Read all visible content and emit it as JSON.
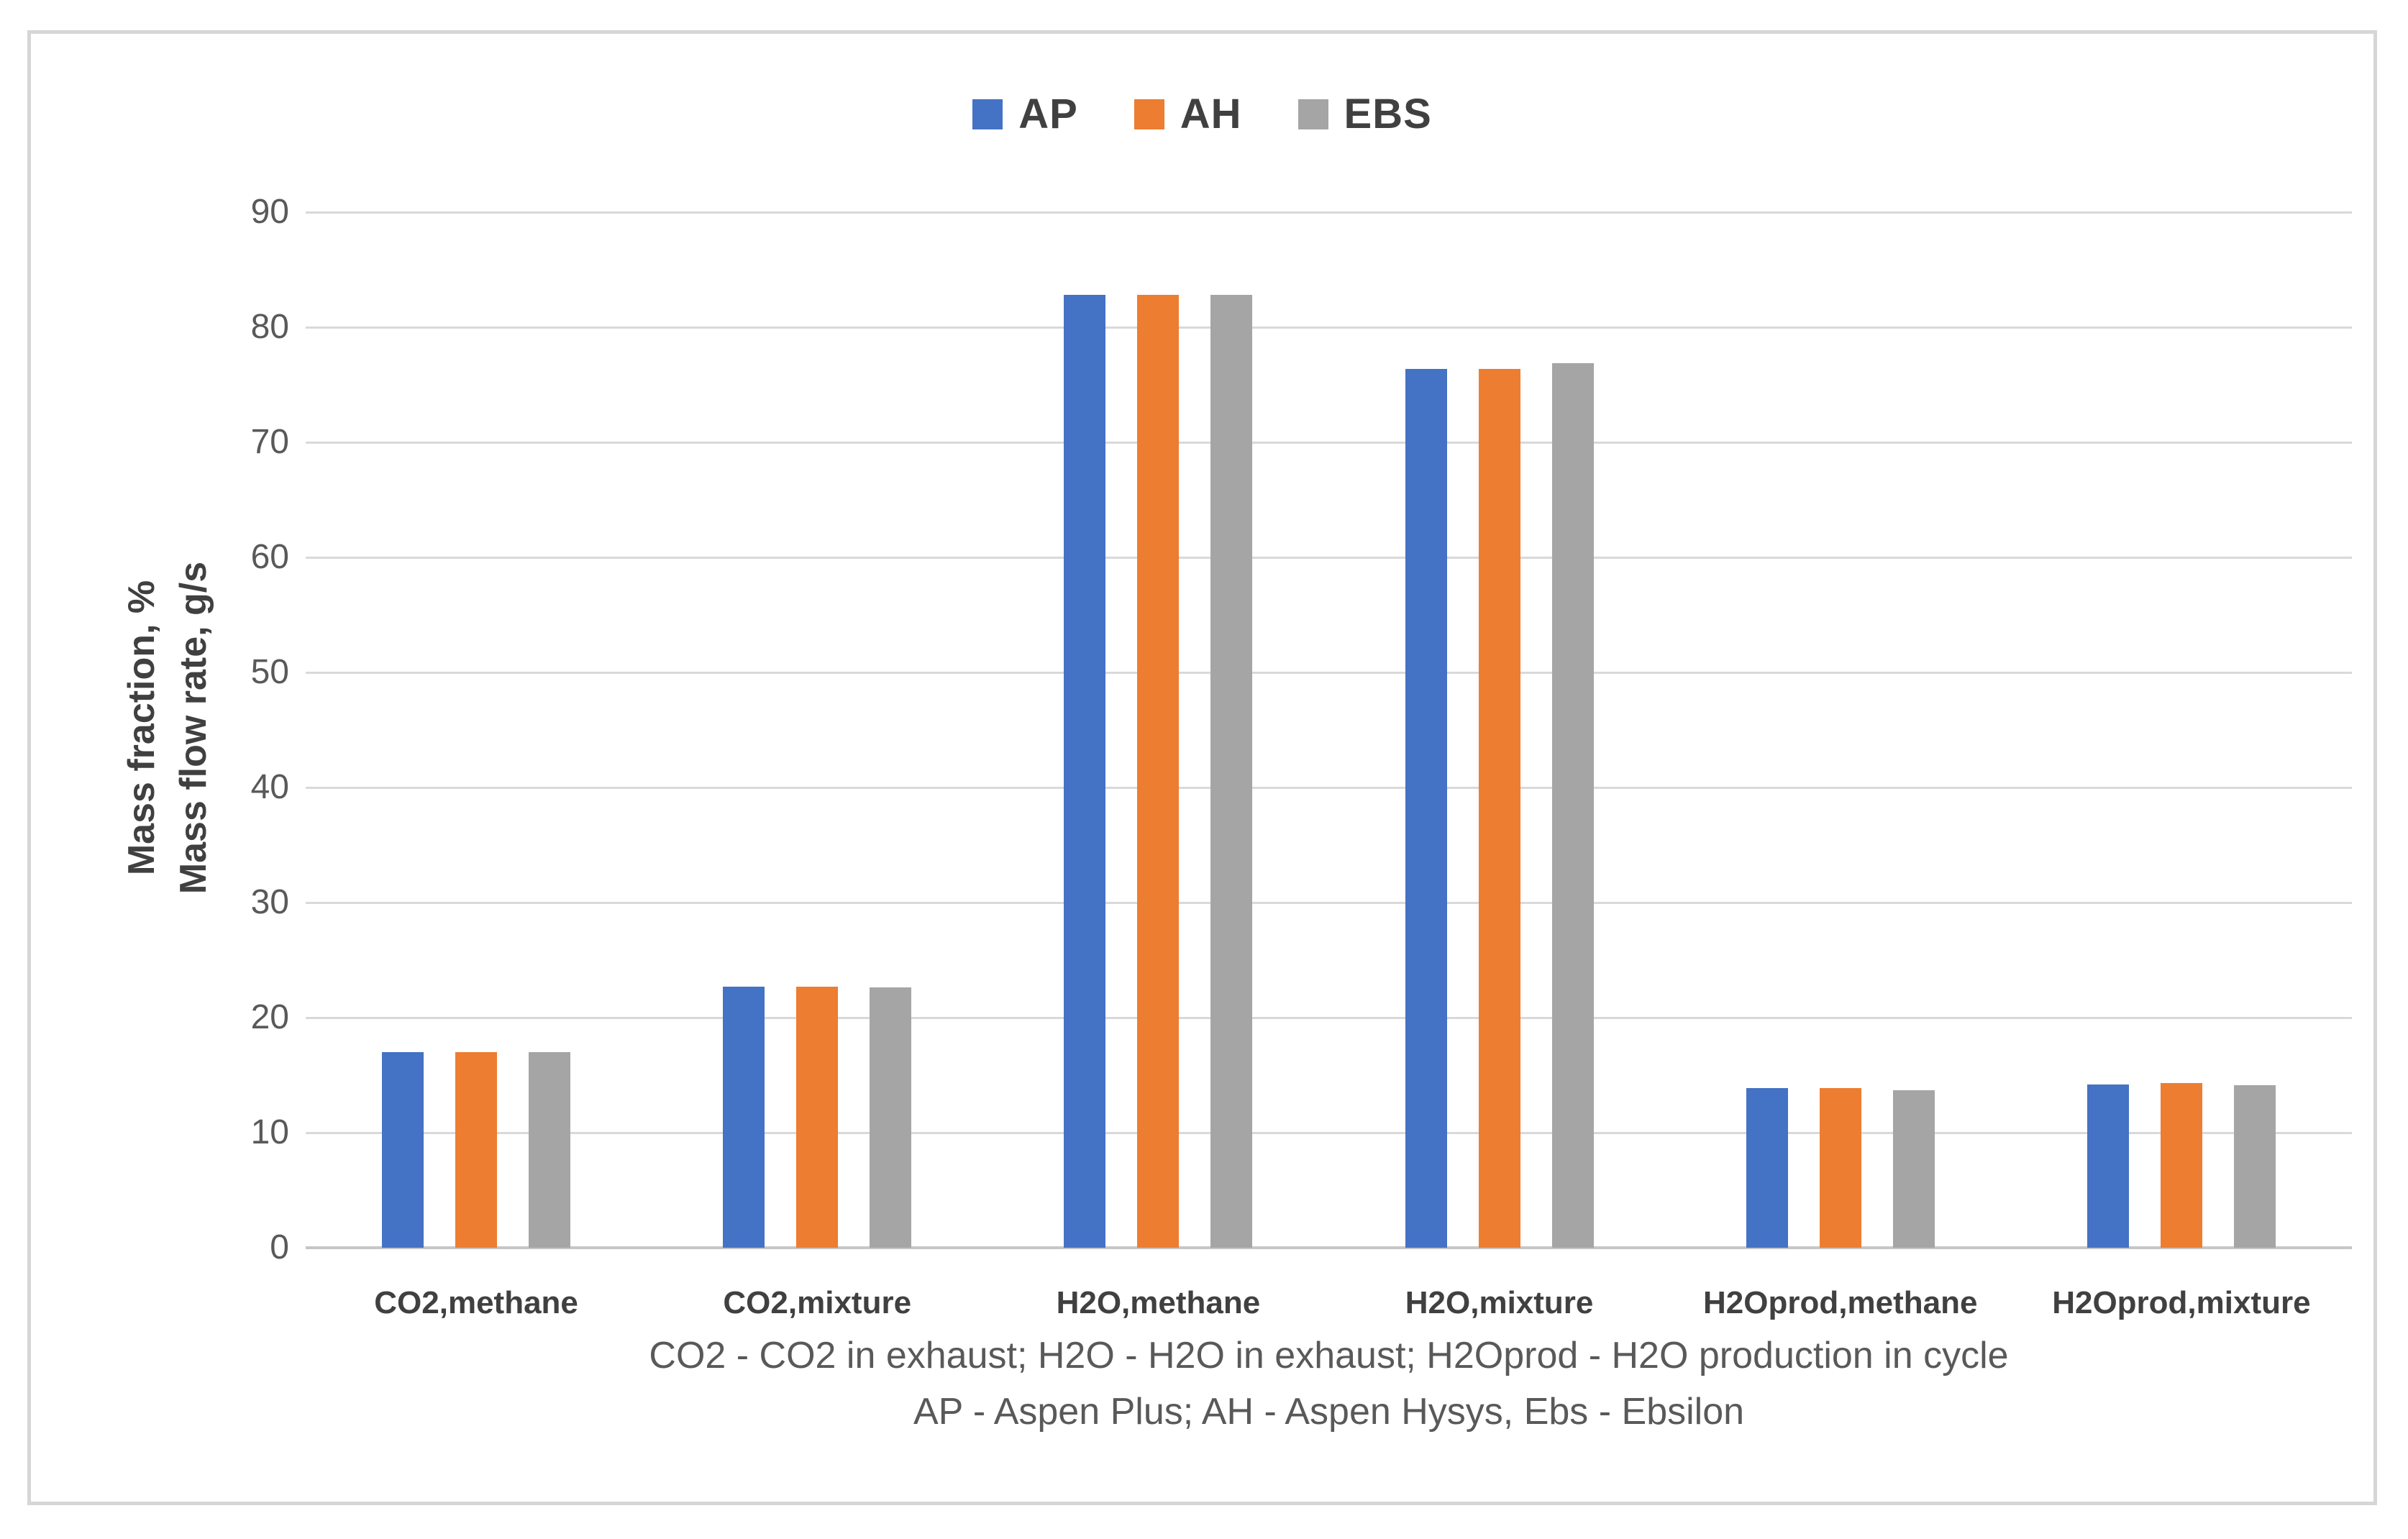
{
  "legend": {
    "items": [
      {
        "label": "AP",
        "color": "#4472C4"
      },
      {
        "label": "AH",
        "color": "#ED7D31"
      },
      {
        "label": "EBS",
        "color": "#A5A5A5"
      }
    ]
  },
  "y_axis": {
    "title_line1": "Mass fraction, %",
    "title_line2": "Mass flow rate, g/s",
    "min": 0,
    "max": 90,
    "step": 10,
    "tick_labels": [
      "0",
      "10",
      "20",
      "30",
      "40",
      "50",
      "60",
      "70",
      "80",
      "90"
    ]
  },
  "footnotes": {
    "line1": "CO2 - CO2 in exhaust; H2O - H2O in exhaust; H2Oprod - H2O production in cycle",
    "line2": "AP - Aspen Plus; AH - Aspen Hysys, Ebs - Ebsilon"
  },
  "colors": {
    "grid": "#D9D9D9",
    "axis": "#C6C6C6",
    "tick_text": "#595959",
    "label_text": "#404040",
    "frame_border": "#D6D6D6"
  },
  "chart_data": {
    "type": "bar",
    "title": "",
    "categories": [
      "CO2,methane",
      "CO2,mixture",
      "H2O,methane",
      "H2O,mixture",
      "H2Oprod,methane",
      "H2Oprod,mixture"
    ],
    "series": [
      {
        "name": "AP",
        "color": "#4472C4",
        "values": [
          17.0,
          22.7,
          82.8,
          76.4,
          13.9,
          14.2
        ]
      },
      {
        "name": "AH",
        "color": "#ED7D31",
        "values": [
          17.0,
          22.7,
          82.8,
          76.4,
          13.9,
          14.3
        ]
      },
      {
        "name": "EBS",
        "color": "#A5A5A5",
        "values": [
          17.0,
          22.6,
          82.8,
          76.9,
          13.7,
          14.1
        ]
      }
    ],
    "xlabel": "",
    "ylabel": "Mass fraction, % / Mass flow rate, g/s",
    "ylim": [
      0,
      90
    ],
    "grid": true,
    "legend_position": "top-center"
  }
}
